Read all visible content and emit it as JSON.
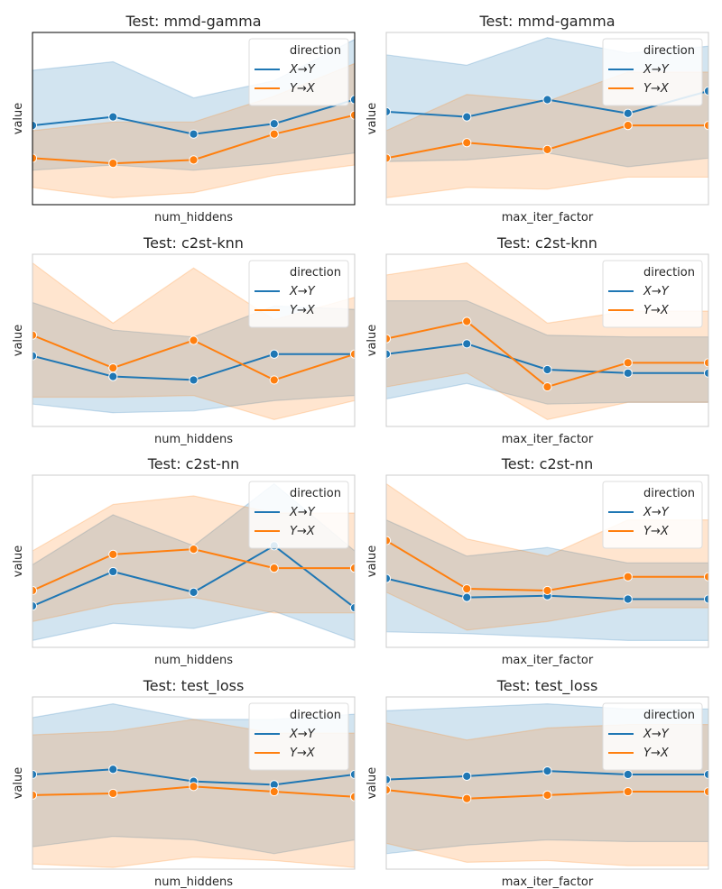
{
  "series_colors": {
    "X→Y": "#1f77b4",
    "Y→X": "#ff7f0e"
  },
  "chart_data": [
    {
      "type": "line",
      "title": "Test: mmd-gamma",
      "xlabel": "num_hiddens",
      "ylabel": "value",
      "legend": {
        "title": "direction",
        "position": "top-right"
      },
      "x_points": 5,
      "grid": false,
      "series": [
        {
          "name": "X→Y",
          "values": [
            0.46,
            0.51,
            0.41,
            0.47,
            0.61
          ],
          "lower": [
            0.2,
            0.23,
            0.2,
            0.24,
            0.3
          ],
          "upper": [
            0.78,
            0.83,
            0.62,
            0.72,
            0.96
          ]
        },
        {
          "name": "Y→X",
          "values": [
            0.27,
            0.24,
            0.26,
            0.41,
            0.52
          ],
          "lower": [
            0.1,
            0.04,
            0.07,
            0.17,
            0.23
          ],
          "upper": [
            0.43,
            0.48,
            0.48,
            0.63,
            0.82
          ]
        }
      ]
    },
    {
      "type": "line",
      "title": "Test: mmd-gamma",
      "xlabel": "max_iter_factor",
      "ylabel": "value",
      "legend": {
        "title": "direction",
        "position": "top-right"
      },
      "x_points": 5,
      "grid": false,
      "series": [
        {
          "name": "X→Y",
          "values": [
            0.54,
            0.51,
            0.61,
            0.53,
            0.66
          ],
          "lower": [
            0.25,
            0.26,
            0.3,
            0.22,
            0.27
          ],
          "upper": [
            0.87,
            0.81,
            0.97,
            0.88,
            0.92
          ]
        },
        {
          "name": "Y→X",
          "values": [
            0.27,
            0.36,
            0.32,
            0.46,
            0.46
          ],
          "lower": [
            0.04,
            0.1,
            0.09,
            0.16,
            0.16
          ],
          "upper": [
            0.43,
            0.64,
            0.6,
            0.77,
            0.77
          ]
        }
      ]
    },
    {
      "type": "line",
      "title": "Test: c2st-knn",
      "xlabel": "num_hiddens",
      "ylabel": "value",
      "legend": {
        "title": "direction",
        "position": "top-right"
      },
      "x_points": 5,
      "grid": false,
      "series": [
        {
          "name": "X→Y",
          "values": [
            0.41,
            0.29,
            0.27,
            0.42,
            0.42
          ],
          "lower": [
            0.13,
            0.08,
            0.09,
            0.15,
            0.18
          ],
          "upper": [
            0.72,
            0.56,
            0.52,
            0.7,
            0.68
          ]
        },
        {
          "name": "Y→X",
          "values": [
            0.53,
            0.34,
            0.5,
            0.27,
            0.42
          ],
          "lower": [
            0.17,
            0.17,
            0.18,
            0.04,
            0.15
          ],
          "upper": [
            0.95,
            0.6,
            0.92,
            0.62,
            0.75
          ]
        }
      ]
    },
    {
      "type": "line",
      "title": "Test: c2st-knn",
      "xlabel": "max_iter_factor",
      "ylabel": "value",
      "legend": {
        "title": "direction",
        "position": "top-right"
      },
      "x_points": 5,
      "grid": false,
      "series": [
        {
          "name": "X→Y",
          "values": [
            0.42,
            0.48,
            0.33,
            0.31,
            0.31
          ],
          "lower": [
            0.16,
            0.25,
            0.13,
            0.14,
            0.14
          ],
          "upper": [
            0.73,
            0.73,
            0.53,
            0.52,
            0.52
          ]
        },
        {
          "name": "Y→X",
          "values": [
            0.51,
            0.61,
            0.23,
            0.37,
            0.37
          ],
          "lower": [
            0.23,
            0.31,
            0.04,
            0.14,
            0.14
          ],
          "upper": [
            0.88,
            0.95,
            0.6,
            0.67,
            0.67
          ]
        }
      ]
    },
    {
      "type": "line",
      "title": "Test: c2st-nn",
      "xlabel": "num_hiddens",
      "ylabel": "value",
      "legend": {
        "title": "direction",
        "position": "top-right"
      },
      "x_points": 5,
      "grid": false,
      "series": [
        {
          "name": "X→Y",
          "values": [
            0.24,
            0.44,
            0.32,
            0.59,
            0.23
          ],
          "lower": [
            0.04,
            0.14,
            0.11,
            0.21,
            0.04
          ],
          "upper": [
            0.48,
            0.77,
            0.59,
            0.95,
            0.56
          ]
        },
        {
          "name": "Y→X",
          "values": [
            0.33,
            0.54,
            0.57,
            0.46,
            0.46
          ],
          "lower": [
            0.15,
            0.25,
            0.29,
            0.2,
            0.2
          ],
          "upper": [
            0.56,
            0.83,
            0.88,
            0.78,
            0.78
          ]
        }
      ]
    },
    {
      "type": "line",
      "title": "Test: c2st-nn",
      "xlabel": "max_iter_factor",
      "ylabel": "value",
      "legend": {
        "title": "direction",
        "position": "top-right"
      },
      "x_points": 5,
      "grid": false,
      "series": [
        {
          "name": "X→Y",
          "values": [
            0.4,
            0.29,
            0.3,
            0.28,
            0.28
          ],
          "lower": [
            0.09,
            0.08,
            0.06,
            0.04,
            0.04
          ],
          "upper": [
            0.74,
            0.53,
            0.58,
            0.49,
            0.49
          ]
        },
        {
          "name": "Y→X",
          "values": [
            0.62,
            0.34,
            0.33,
            0.41,
            0.41
          ],
          "lower": [
            0.32,
            0.1,
            0.15,
            0.23,
            0.23
          ],
          "upper": [
            0.95,
            0.63,
            0.53,
            0.74,
            0.74
          ]
        }
      ]
    },
    {
      "type": "line",
      "title": "Test: test_loss",
      "xlabel": "num_hiddens",
      "ylabel": "value",
      "legend": {
        "title": "direction",
        "position": "top-right"
      },
      "x_points": 5,
      "grid": false,
      "series": [
        {
          "name": "X→Y",
          "values": [
            0.55,
            0.58,
            0.51,
            0.49,
            0.55
          ],
          "lower": [
            0.13,
            0.19,
            0.17,
            0.09,
            0.17
          ],
          "upper": [
            0.88,
            0.96,
            0.87,
            0.87,
            0.9
          ]
        },
        {
          "name": "Y→X",
          "values": [
            0.43,
            0.44,
            0.48,
            0.45,
            0.42
          ],
          "lower": [
            0.03,
            0.01,
            0.07,
            0.05,
            0.01
          ],
          "upper": [
            0.78,
            0.8,
            0.87,
            0.79,
            0.79
          ]
        }
      ]
    },
    {
      "type": "line",
      "title": "Test: test_loss",
      "xlabel": "max_iter_factor",
      "ylabel": "value",
      "legend": {
        "title": "direction",
        "position": "top-right"
      },
      "x_points": 5,
      "grid": false,
      "series": [
        {
          "name": "X→Y",
          "values": [
            0.52,
            0.54,
            0.57,
            0.55,
            0.55
          ],
          "lower": [
            0.09,
            0.14,
            0.17,
            0.16,
            0.16
          ],
          "upper": [
            0.92,
            0.94,
            0.96,
            0.93,
            0.93
          ]
        },
        {
          "name": "Y→X",
          "values": [
            0.46,
            0.41,
            0.43,
            0.45,
            0.45
          ],
          "lower": [
            0.15,
            0.04,
            0.05,
            0.02,
            0.02
          ],
          "upper": [
            0.85,
            0.75,
            0.82,
            0.84,
            0.84
          ]
        }
      ]
    }
  ]
}
